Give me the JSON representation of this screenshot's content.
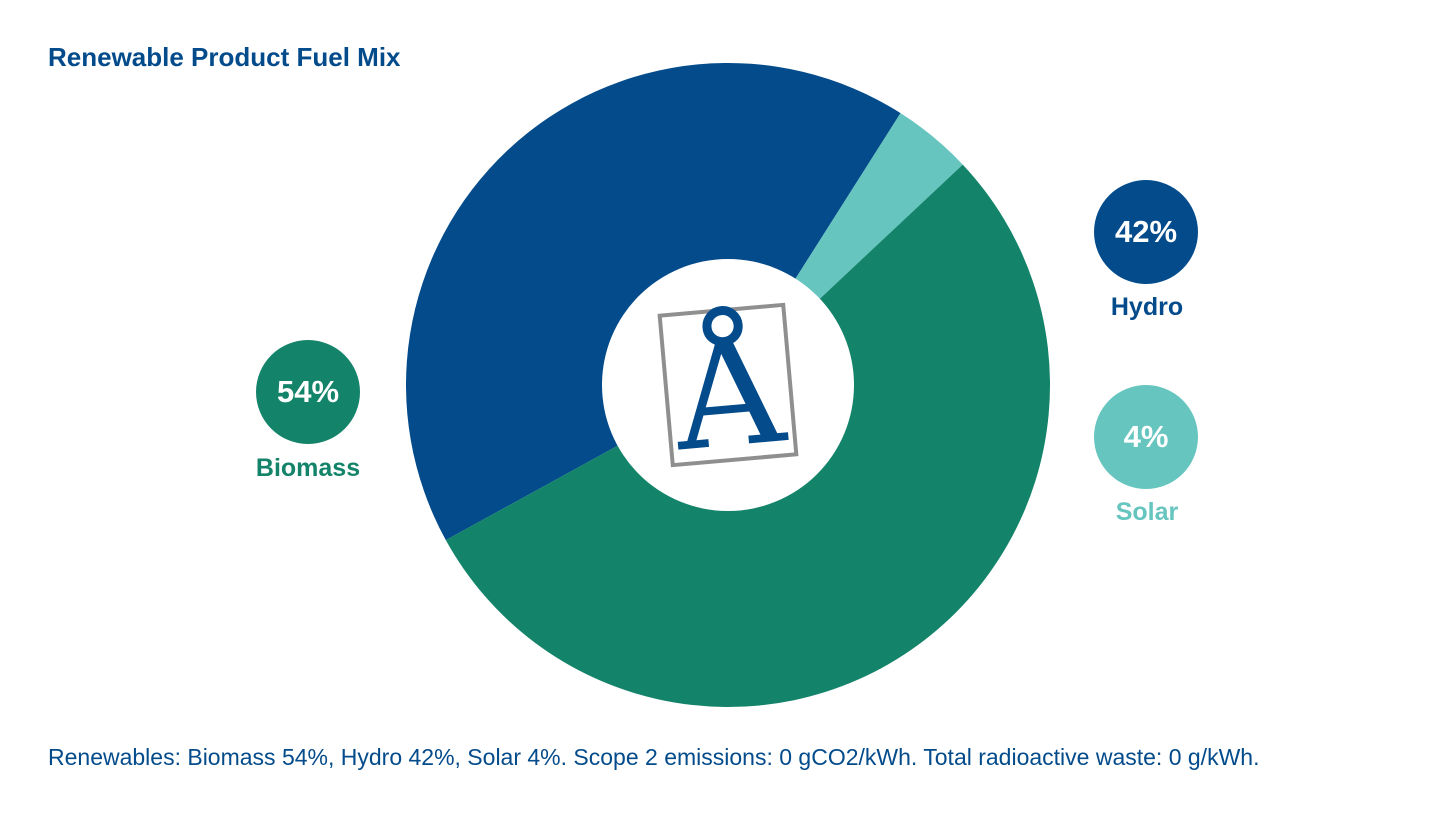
{
  "chart_data": {
    "type": "pie",
    "title": "Renewable Product Fuel Mix",
    "slices": [
      {
        "name": "Biomass",
        "value": 54,
        "label": "54%",
        "color": "#138369"
      },
      {
        "name": "Hydro",
        "value": 42,
        "label": "42%",
        "color": "#034b8b"
      },
      {
        "name": "Solar",
        "value": 4,
        "label": "4%",
        "color": "#66c5bf"
      }
    ],
    "donut_hole": true,
    "footnote": "Renewables: Biomass 54%, Hydro 42%, Solar 4%. Scope 2 emissions: 0 gCO2/kWh. Total radioactive waste: 0 g/kWh."
  },
  "logo": {
    "glyph": "Å",
    "colors": {
      "letter": "#034b8b",
      "frame": "#8f8f8f"
    }
  }
}
